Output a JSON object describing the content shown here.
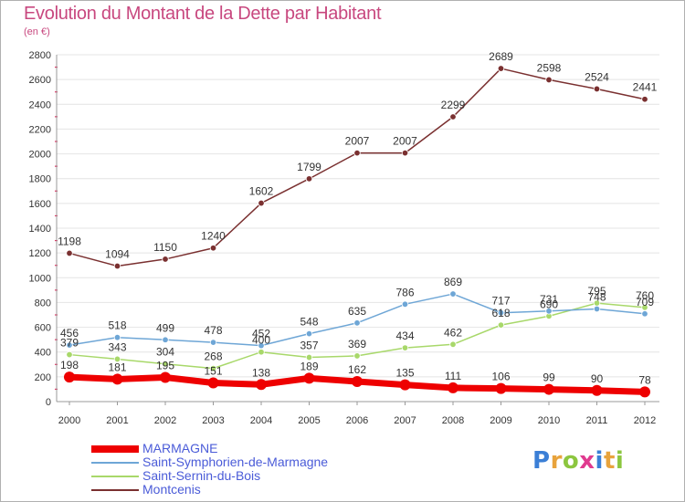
{
  "title": "Evolution du Montant de la Dette par Habitant",
  "subtitle": "(en €)",
  "logo": {
    "text": "Proxiti",
    "colors": [
      "#3b7fd6",
      "#e8a33c",
      "#8cc63f",
      "#e03a8f",
      "#3b7fd6",
      "#e8a33c",
      "#8cc63f"
    ]
  },
  "chart_data": {
    "type": "line",
    "x": [
      "2000",
      "2001",
      "2002",
      "2003",
      "2004",
      "2005",
      "2006",
      "2007",
      "2008",
      "2009",
      "2010",
      "2011",
      "2012"
    ],
    "ylim": [
      0,
      2800
    ],
    "yticks": [
      "0",
      "200",
      "400",
      "600",
      "800",
      "1000",
      "1200",
      "1400",
      "1600",
      "1800",
      "2000",
      "2200",
      "2400",
      "2600",
      "2800"
    ],
    "grid": "horizontal",
    "legend_position": "bottom-left",
    "series": [
      {
        "name": "MARMAGNE",
        "color": "#ee0000",
        "values": [
          198,
          181,
          195,
          151,
          138,
          189,
          162,
          135,
          111,
          106,
          99,
          90,
          78
        ],
        "labels": [
          "198",
          "181",
          "195",
          "151",
          "138",
          "189",
          "162",
          "135",
          "111",
          "106",
          "99",
          "90",
          "78"
        ]
      },
      {
        "name": "Saint-Symphorien-de-Marmagne",
        "color": "#6ea6d6",
        "values": [
          456,
          518,
          499,
          478,
          452,
          548,
          635,
          786,
          869,
          717,
          731,
          748,
          709
        ],
        "labels": [
          "456",
          "518",
          "499",
          "478",
          "452",
          "548",
          "635",
          "786",
          "869",
          "717",
          "731",
          "748",
          "709"
        ]
      },
      {
        "name": "Saint-Sernin-du-Bois",
        "color": "#a8d86a",
        "values": [
          379,
          343,
          304,
          268,
          400,
          357,
          369,
          434,
          462,
          618,
          690,
          795,
          760
        ],
        "labels": [
          "379",
          "343",
          "304",
          "268",
          "400",
          "357",
          "369",
          "434",
          "462",
          "618",
          "690",
          "795",
          "760"
        ]
      },
      {
        "name": "Montcenis",
        "color": "#7a3030",
        "values": [
          1198,
          1094,
          1150,
          1240,
          1602,
          1799,
          2007,
          2007,
          2299,
          2689,
          2598,
          2524,
          2441
        ],
        "labels": [
          "1198",
          "1094",
          "1150",
          "1240",
          "1602",
          "1799",
          "2007",
          "2007",
          "2299",
          "2689",
          "2598",
          "2524",
          "2441"
        ]
      }
    ]
  }
}
